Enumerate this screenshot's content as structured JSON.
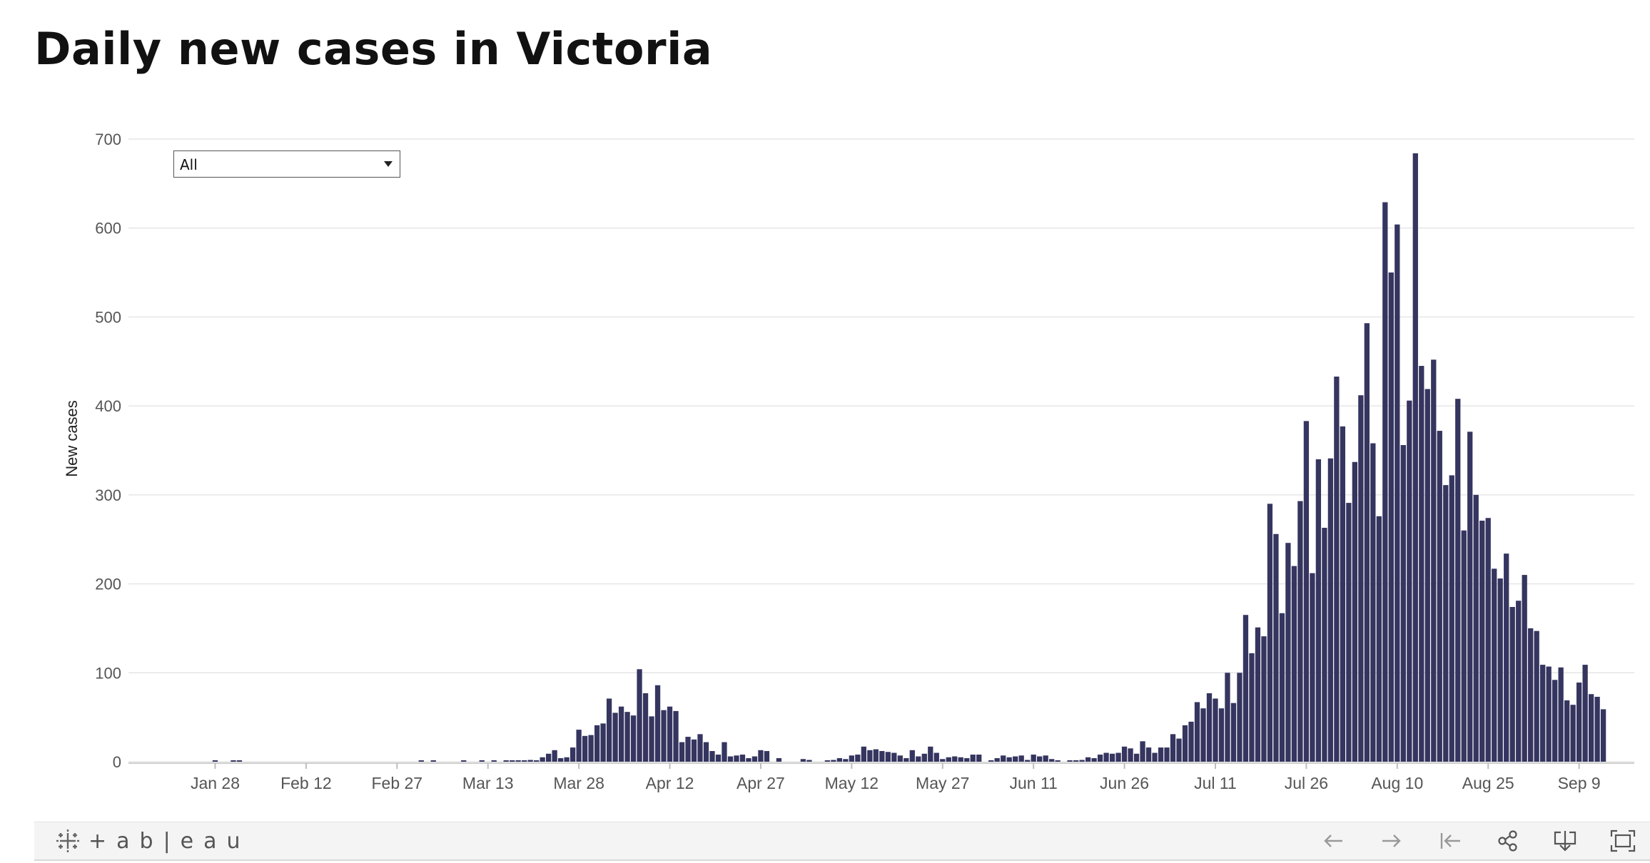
{
  "title": "Daily new cases in Victoria",
  "filter": {
    "selected": "All"
  },
  "toolbar": {
    "brand": "+ab|eau",
    "buttons": [
      {
        "name": "undo-icon"
      },
      {
        "name": "redo-icon"
      },
      {
        "name": "revert-icon"
      },
      {
        "name": "share-icon"
      },
      {
        "name": "download-icon"
      },
      {
        "name": "fullscreen-icon"
      }
    ]
  },
  "colors": {
    "bar": "#353560",
    "grid": "#e6e6e6",
    "axis_text": "#555555"
  },
  "chart_data": {
    "type": "bar",
    "ylabel": "New cases",
    "xlabel": "",
    "ylim": [
      0,
      700
    ],
    "yticks": [
      0,
      100,
      200,
      300,
      400,
      500,
      600,
      700
    ],
    "xtick_labels": [
      "Jan 28",
      "Feb 12",
      "Feb 27",
      "Mar 13",
      "Mar 28",
      "Apr 12",
      "Apr 27",
      "May 12",
      "May 27",
      "Jun 11",
      "Jun 26",
      "Jul 11",
      "Jul 26",
      "Aug 10",
      "Aug 25",
      "Sep 9"
    ],
    "grid": true,
    "legend": "none",
    "x_start": "2020-01-25",
    "values": [
      0,
      0,
      0,
      1,
      0,
      0,
      1,
      1,
      0,
      0,
      0,
      0,
      0,
      0,
      0,
      0,
      0,
      0,
      0,
      0,
      0,
      0,
      0,
      0,
      0,
      0,
      0,
      0,
      0,
      0,
      0,
      0,
      0,
      0,
      0,
      0,
      0,
      1,
      0,
      1,
      0,
      0,
      0,
      0,
      1,
      0,
      0,
      1,
      0,
      1,
      0,
      1,
      1,
      1,
      1,
      2,
      1,
      5,
      9,
      13,
      4,
      5,
      16,
      36,
      29,
      30,
      41,
      43,
      71,
      55,
      62,
      56,
      52,
      104,
      77,
      51,
      86,
      58,
      62,
      57,
      22,
      28,
      25,
      31,
      22,
      12,
      8,
      22,
      6,
      7,
      8,
      4,
      6,
      13,
      12,
      0,
      4,
      0,
      0,
      0,
      3,
      2,
      0,
      0,
      1,
      2,
      4,
      3,
      7,
      8,
      17,
      13,
      14,
      12,
      11,
      10,
      7,
      4,
      13,
      6,
      9,
      17,
      10,
      3,
      5,
      6,
      5,
      4,
      8,
      8,
      0,
      1,
      4,
      7,
      5,
      6,
      7,
      2,
      8,
      6,
      7,
      3,
      1,
      0,
      1,
      1,
      2,
      5,
      4,
      8,
      10,
      9,
      10,
      17,
      15,
      9,
      23,
      16,
      10,
      16,
      16,
      31,
      26,
      41,
      45,
      67,
      60,
      77,
      71,
      60,
      100,
      66,
      100,
      165,
      122,
      151,
      141,
      290,
      256,
      167,
      246,
      220,
      293,
      383,
      212,
      340,
      263,
      341,
      433,
      377,
      291,
      337,
      412,
      493,
      358,
      276,
      629,
      550,
      604,
      356,
      406,
      684,
      445,
      419,
      452,
      372,
      311,
      322,
      408,
      260,
      371,
      300,
      271,
      274,
      217,
      206,
      234,
      174,
      181,
      210,
      150,
      147,
      109,
      107,
      92,
      106,
      69,
      64,
      89,
      109,
      76,
      73,
      59
    ]
  }
}
